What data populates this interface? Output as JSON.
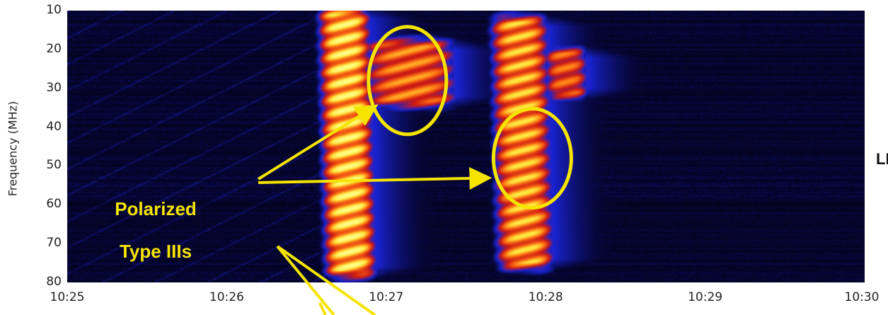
{
  "chart_data": {
    "type": "heatmap",
    "title": "",
    "ylabel": "Frequency (MHz)",
    "xlabel": "",
    "y_ticks": [
      "10",
      "20",
      "30",
      "40",
      "50",
      "60",
      "70",
      "80"
    ],
    "x_ticks": [
      "10:25",
      "10:26",
      "10:27",
      "10:28",
      "10:29",
      "10:30"
    ],
    "ylim": [
      10,
      80
    ],
    "xlim": [
      "10:25",
      "10:30"
    ],
    "y_inverted": true,
    "colormap": [
      "#000000",
      "#0a0a50",
      "#1e28dc",
      "#dc1e0a",
      "#ff8c14",
      "#ffff50"
    ],
    "bursts": [
      {
        "time_start": "10:26:35",
        "time_end": "10:26:53",
        "freq_min": 10,
        "freq_max": 78,
        "peak_intensity": 1.0
      },
      {
        "time_start": "10:26:52",
        "time_end": "10:27:25",
        "freq_min": 18,
        "freq_max": 34,
        "peak_intensity": 0.8
      },
      {
        "time_start": "10:27:40",
        "time_end": "10:28:00",
        "freq_min": 12,
        "freq_max": 76,
        "peak_intensity": 0.9
      },
      {
        "time_start": "10:28:00",
        "time_end": "10:28:15",
        "freq_min": 20,
        "freq_max": 32,
        "peak_intensity": 0.75
      }
    ],
    "annotations": {
      "label_line1": "Polarized",
      "label_line2": "Type IIIs",
      "right_edge_text": "LI",
      "circled_regions": [
        {
          "time": "10:27:08",
          "freq": 28
        },
        {
          "time": "10:27:55",
          "freq": 48
        }
      ]
    },
    "annotation_color": "#f5e400"
  }
}
